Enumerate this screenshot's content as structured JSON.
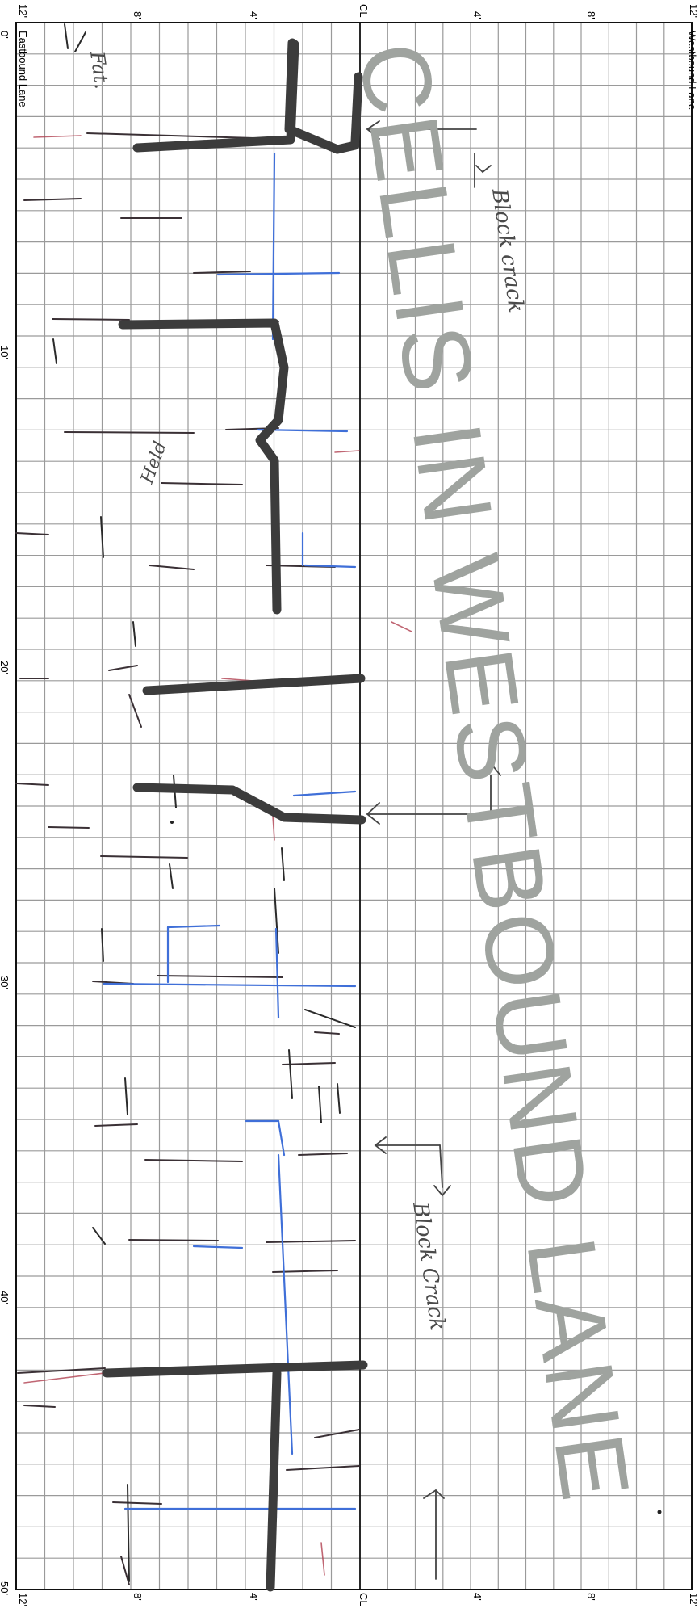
{
  "sheet": {
    "eastbound_label": "Eastbound Lane",
    "westbound_label": "Westbound Lane",
    "centerline_top": "CL",
    "centerline_bottom": "CL",
    "top_ticks": [
      "12'",
      "8'",
      "4'",
      "4'",
      "8'",
      "12'"
    ],
    "bottom_ticks": [
      "12'",
      "8'",
      "4'",
      "4'",
      "8'",
      "12'"
    ],
    "distance_ticks": [
      "0'",
      "10'",
      "20'",
      "30'",
      "40'",
      "50'"
    ]
  },
  "stamp": {
    "text": "CELLIS IN WESTBOUND LANE"
  },
  "handwritten": {
    "block_crack_1": "Block crack",
    "block_crack_2": "Block Crack",
    "fat": "Fat.",
    "note": "Held"
  },
  "colors": {
    "grid": "#9a9a9a",
    "patch": "#3c3c3c",
    "blue_crack": "#3f6fd8",
    "red_crack": "#b04050",
    "stamp": "#9fa39f"
  }
}
